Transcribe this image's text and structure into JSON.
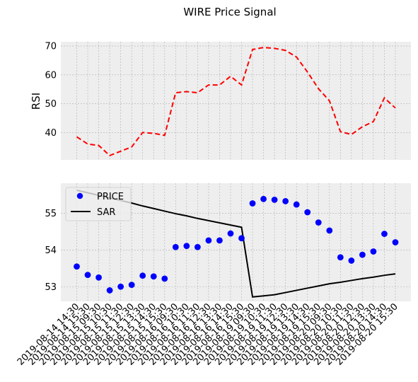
{
  "chart_data": [
    {
      "type": "line",
      "title": "WIRE Price Signal",
      "ylabel": "RSI",
      "xlabel": "",
      "ylim": [
        30.5,
        71.5
      ],
      "yticks": [
        40,
        50,
        60,
        70
      ],
      "grid": true,
      "series": [
        {
          "name": "",
          "style": "dashed",
          "color": "#ff0000",
          "values": [
            38.5,
            36.0,
            35.5,
            32.0,
            33.5,
            35.0,
            40.0,
            39.7,
            39.0,
            53.8,
            54.2,
            53.8,
            56.5,
            56.5,
            59.5,
            56.5,
            68.8,
            69.5,
            69.2,
            68.5,
            66.2,
            61.0,
            55.2,
            51.0,
            40.3,
            39.3,
            42.0,
            43.8,
            52.0,
            48.5
          ]
        }
      ]
    },
    {
      "type": "scatter",
      "ylabel": "",
      "xlabel": "",
      "ylim": [
        52.6,
        55.82
      ],
      "yticks": [
        53,
        54,
        55
      ],
      "grid": true,
      "legend_position": "top-left",
      "x": [
        "2019-08-14 14:30",
        "2019-08-14 15:30",
        "2019-08-15 09:30",
        "2019-08-15 10:30",
        "2019-08-15 11:30",
        "2019-08-15 12:30",
        "2019-08-15 13:30",
        "2019-08-15 14:30",
        "2019-08-15 15:30",
        "2019-08-16 09:30",
        "2019-08-16 10:30",
        "2019-08-16 11:30",
        "2019-08-16 12:30",
        "2019-08-16 13:30",
        "2019-08-16 14:30",
        "2019-08-16 15:30",
        "2019-08-19 09:30",
        "2019-08-19 10:30",
        "2019-08-19 11:30",
        "2019-08-19 12:30",
        "2019-08-19 13:30",
        "2019-08-19 14:30",
        "2019-08-19 15:30",
        "2019-08-20 09:30",
        "2019-08-20 10:30",
        "2019-08-20 11:30",
        "2019-08-20 12:30",
        "2019-08-20 13:30",
        "2019-08-20 14:30",
        "2019-08-20 15:30"
      ],
      "series": [
        {
          "name": "PRICE",
          "style": "markers",
          "color": "#0000ff",
          "values": [
            53.55,
            53.32,
            53.25,
            52.9,
            53.0,
            53.05,
            53.3,
            53.28,
            53.22,
            54.08,
            54.11,
            54.08,
            54.26,
            54.26,
            54.45,
            54.32,
            55.27,
            55.39,
            55.37,
            55.33,
            55.24,
            55.03,
            54.75,
            54.53,
            53.8,
            53.71,
            53.87,
            53.96,
            54.44,
            54.21
          ]
        },
        {
          "name": "SAR",
          "style": "solid",
          "color": "#000000",
          "values": [
            55.63,
            55.56,
            55.49,
            55.42,
            55.35,
            55.28,
            55.2,
            55.13,
            55.06,
            54.99,
            54.93,
            54.86,
            54.8,
            54.74,
            54.68,
            54.62,
            52.72,
            52.75,
            52.78,
            52.84,
            52.9,
            52.96,
            53.02,
            53.08,
            53.12,
            53.17,
            53.22,
            53.26,
            53.31,
            53.35
          ]
        }
      ]
    }
  ]
}
